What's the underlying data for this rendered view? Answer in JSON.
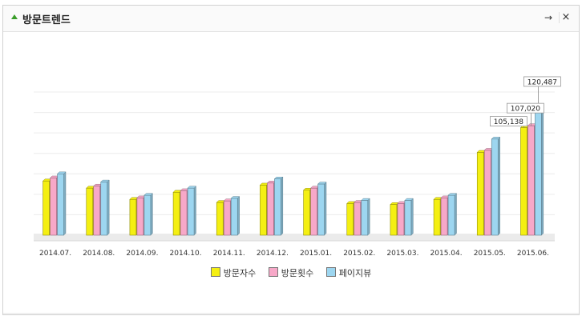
{
  "widget": {
    "title": "방문트렌드",
    "go_label": "→",
    "close_label": "×"
  },
  "colors": {
    "visitors": "#f4ef12",
    "visits": "#f7a8c8",
    "pageviews": "#9dd6f0"
  },
  "chart_data": {
    "type": "bar",
    "categories": [
      "2014.07.",
      "2014.08.",
      "2014.09.",
      "2014.10.",
      "2014.11.",
      "2014.12.",
      "2015.01.",
      "2015.02.",
      "2015.03.",
      "2015.04.",
      "2015.05.",
      "2015.06."
    ],
    "series": [
      {
        "name": "방문자수",
        "key": "visitors",
        "values": [
          53000,
          46000,
          35000,
          42000,
          32000,
          49000,
          44000,
          31000,
          30000,
          35000,
          81000,
          105138
        ]
      },
      {
        "name": "방문횟수",
        "key": "visits",
        "values": [
          56000,
          48000,
          36500,
          43500,
          33500,
          51000,
          46000,
          32000,
          31000,
          36500,
          83000,
          107020
        ]
      },
      {
        "name": "페이지뷰",
        "key": "pageviews",
        "values": [
          60000,
          52000,
          39000,
          46000,
          36000,
          55000,
          50000,
          34000,
          34000,
          39000,
          94000,
          120487
        ]
      }
    ],
    "data_labels": {
      "category": "2015.06.",
      "visitors": "105,138",
      "visits": "107,020",
      "pageviews": "120,487"
    },
    "ylim": [
      0,
      140000
    ],
    "grid": true,
    "legend_position": "bottom"
  }
}
